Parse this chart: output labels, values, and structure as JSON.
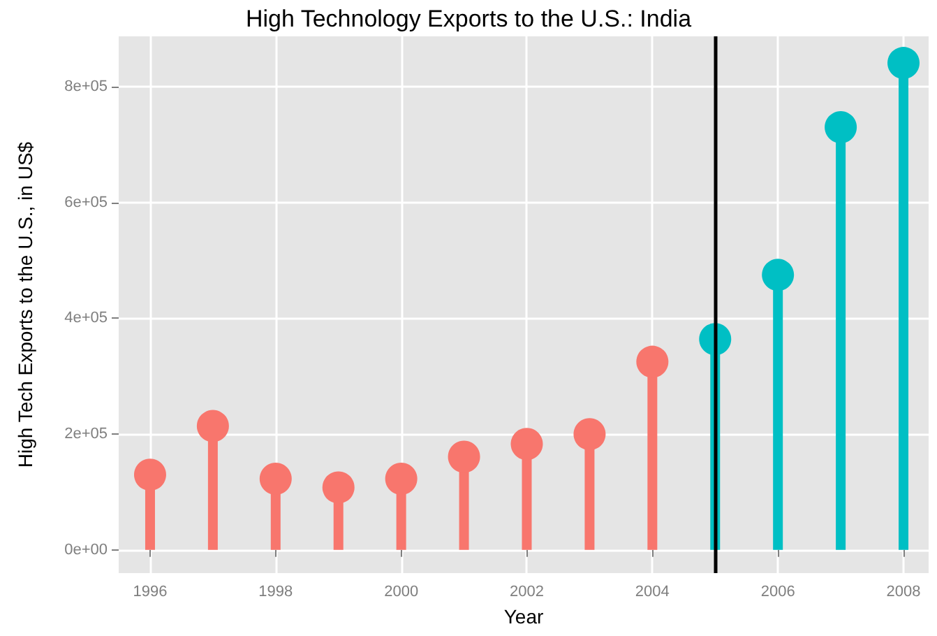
{
  "chart_data": {
    "type": "lollipop",
    "title": "High Technology Exports to the U.S.: India",
    "xlabel": "Year",
    "ylabel": "High Tech Exports to the U.S., in US$",
    "series": [
      {
        "color": "#f8766d",
        "x": [
          1996,
          1997,
          1998,
          1999,
          2000,
          2001,
          2002,
          2003,
          2004
        ],
        "values": [
          130000,
          214000,
          123000,
          108000,
          123000,
          161000,
          183000,
          200000,
          325000
        ]
      },
      {
        "color": "#00bfc4",
        "x": [
          2005,
          2006,
          2007,
          2008
        ],
        "values": [
          364000,
          475000,
          730000,
          841000
        ]
      }
    ],
    "xlim": [
      1995.5,
      2008.4
    ],
    "xticks": [
      1996,
      1998,
      2000,
      2002,
      2004,
      2006,
      2008
    ],
    "ylim": [
      -40000,
      887000
    ],
    "yticks": [
      {
        "value": 0,
        "label": "0e+00"
      },
      {
        "value": 200000,
        "label": "2e+05"
      },
      {
        "value": 400000,
        "label": "4e+05"
      },
      {
        "value": 600000,
        "label": "6e+05"
      },
      {
        "value": 800000,
        "label": "8e+05"
      }
    ],
    "ref_lines": [
      {
        "axis": "x",
        "value": 2005,
        "color": "#000000"
      }
    ],
    "grid": true,
    "marker": "circle"
  }
}
